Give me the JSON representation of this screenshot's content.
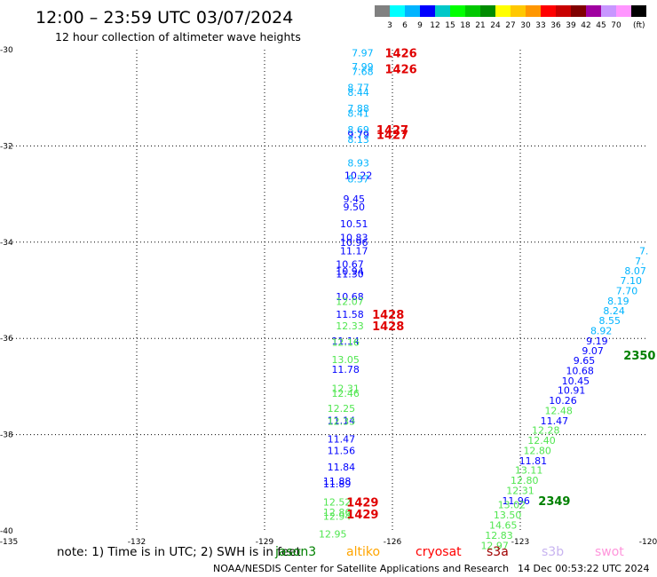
{
  "header": {
    "title": "12:00 – 23:59 UTC 03/07/2024",
    "subtitle": "12 hour collection of altimeter wave heights"
  },
  "legend": {
    "colors": [
      "#808080",
      "#00ffff",
      "#00b4ff",
      "#0000ff",
      "#00c8c8",
      "#00ff00",
      "#00c800",
      "#008c00",
      "#ffff00",
      "#ffc800",
      "#ff9600",
      "#ff0000",
      "#c80000",
      "#800000",
      "#a000a0",
      "#c896ff",
      "#ff96ff",
      "#000000"
    ],
    "labels": [
      "3",
      "6",
      "9",
      "12",
      "15",
      "18",
      "21",
      "24",
      "27",
      "30",
      "33",
      "36",
      "39",
      "42",
      "45",
      "70"
    ],
    "unit": "(ft)"
  },
  "footer": {
    "note": "note:  1) Time is in UTC; 2) SWH is in feet",
    "credit": "NOAA/NESDIS Center for Satellite Applications and Research",
    "timestamp": "14 Dec 00:53:22 UTC 2024",
    "satellites": [
      {
        "name": "jason3",
        "color": "#008000"
      },
      {
        "name": "altiko",
        "color": "#ffa500"
      },
      {
        "name": "cryosat",
        "color": "#ff0000"
      },
      {
        "name": "s3a",
        "color": "#a00000"
      },
      {
        "name": "s3b",
        "color": "#c8b4f0"
      },
      {
        "name": "swot",
        "color": "#ff96dc"
      }
    ]
  },
  "chart_data": {
    "type": "scatter",
    "title": "12:00 – 23:59 UTC 03/07/2024",
    "subtitle": "12 hour collection of altimeter wave heights",
    "xlim": [
      -135,
      -120
    ],
    "ylim": [
      -40,
      -30
    ],
    "x_ticks": [
      -135,
      -132,
      -129,
      -126,
      -123,
      -120
    ],
    "x_tick_labels": [
      "-135",
      "-132",
      "-129",
      "-126",
      "-123",
      "-120"
    ],
    "y_ticks": [
      -30,
      -32,
      -34,
      -36,
      -38,
      -40
    ],
    "y_tick_labels": [
      "-30",
      "-32",
      "-34",
      "-36",
      "-38",
      "-40"
    ],
    "grid": true,
    "points": [
      {
        "lon": -126.7,
        "lat": -30.06,
        "label": "7.97",
        "color": "#00b4ff"
      },
      {
        "lon": -126.7,
        "lat": -30.35,
        "label": "7.99",
        "color": "#00b4ff"
      },
      {
        "lon": -126.7,
        "lat": -30.45,
        "label": "7.68",
        "color": "#00b4ff"
      },
      {
        "lon": -126.8,
        "lat": -30.78,
        "label": "8.77",
        "color": "#00b4ff"
      },
      {
        "lon": -126.8,
        "lat": -30.89,
        "label": "8.44",
        "color": "#00b4ff"
      },
      {
        "lon": -126.8,
        "lat": -31.22,
        "label": "7.88",
        "color": "#00b4ff"
      },
      {
        "lon": -126.8,
        "lat": -31.32,
        "label": "8.41",
        "color": "#00b4ff"
      },
      {
        "lon": -126.8,
        "lat": -31.66,
        "label": "8.69",
        "color": "#00b4ff"
      },
      {
        "lon": -126.8,
        "lat": -31.76,
        "label": "9.79",
        "color": "#0000ff"
      },
      {
        "lon": -126.8,
        "lat": -31.86,
        "label": "8.13",
        "color": "#00b4ff"
      },
      {
        "lon": -126.8,
        "lat": -32.35,
        "label": "8.93",
        "color": "#00b4ff"
      },
      {
        "lon": -126.8,
        "lat": -32.61,
        "label": "10.22",
        "color": "#0000ff"
      },
      {
        "lon": -126.8,
        "lat": -32.68,
        "label": "8.37",
        "color": "#00b4ff"
      },
      {
        "lon": -126.9,
        "lat": -33.1,
        "label": "9.45",
        "color": "#0000ff"
      },
      {
        "lon": -126.9,
        "lat": -33.27,
        "label": "9.50",
        "color": "#0000ff"
      },
      {
        "lon": -126.9,
        "lat": -33.62,
        "label": "10.51",
        "color": "#0000ff"
      },
      {
        "lon": -126.9,
        "lat": -33.9,
        "label": "10.83",
        "color": "#0000ff"
      },
      {
        "lon": -126.9,
        "lat": -34.0,
        "label": "10.96",
        "color": "#0000ff"
      },
      {
        "lon": -126.9,
        "lat": -34.18,
        "label": "11.17",
        "color": "#0000ff"
      },
      {
        "lon": -127.0,
        "lat": -34.46,
        "label": "10.67",
        "color": "#0000ff"
      },
      {
        "lon": -127.0,
        "lat": -34.6,
        "label": "10.94",
        "color": "#0000ff"
      },
      {
        "lon": -127.0,
        "lat": -34.66,
        "label": "11.30",
        "color": "#0000ff"
      },
      {
        "lon": -127.0,
        "lat": -35.13,
        "label": "10.68",
        "color": "#0000ff"
      },
      {
        "lon": -127.0,
        "lat": -35.23,
        "label": "12.07",
        "color": "#50e650"
      },
      {
        "lon": -127.0,
        "lat": -35.5,
        "label": "11.58",
        "color": "#0000ff"
      },
      {
        "lon": -127.0,
        "lat": -35.74,
        "label": "12.33",
        "color": "#50e650"
      },
      {
        "lon": -127.1,
        "lat": -36.05,
        "label": "11.14",
        "color": "#0000ff"
      },
      {
        "lon": -127.1,
        "lat": -36.08,
        "label": "12.16",
        "color": "#50e650"
      },
      {
        "lon": -127.1,
        "lat": -36.44,
        "label": "13.05",
        "color": "#50e650"
      },
      {
        "lon": -127.1,
        "lat": -36.64,
        "label": "11.78",
        "color": "#0000ff"
      },
      {
        "lon": -127.1,
        "lat": -37.04,
        "label": "12.31",
        "color": "#50e650"
      },
      {
        "lon": -127.1,
        "lat": -37.14,
        "label": "12.46",
        "color": "#50e650"
      },
      {
        "lon": -127.2,
        "lat": -37.45,
        "label": "12.25",
        "color": "#50e650"
      },
      {
        "lon": -127.2,
        "lat": -37.7,
        "label": "11.14",
        "color": "#0000ff"
      },
      {
        "lon": -127.2,
        "lat": -37.72,
        "label": "12.33",
        "color": "#50e650"
      },
      {
        "lon": -127.2,
        "lat": -38.09,
        "label": "11.47",
        "color": "#0000ff"
      },
      {
        "lon": -127.2,
        "lat": -38.33,
        "label": "11.56",
        "color": "#0000ff"
      },
      {
        "lon": -127.2,
        "lat": -38.67,
        "label": "11.84",
        "color": "#0000ff"
      },
      {
        "lon": -127.3,
        "lat": -38.97,
        "label": "11.88",
        "color": "#0000ff"
      },
      {
        "lon": -127.3,
        "lat": -39.02,
        "label": "11.89",
        "color": "#0000ff"
      },
      {
        "lon": -127.3,
        "lat": -39.4,
        "label": "12.52",
        "color": "#50e650"
      },
      {
        "lon": -127.3,
        "lat": -39.61,
        "label": "12.86",
        "color": "#50e650"
      },
      {
        "lon": -127.3,
        "lat": -39.7,
        "label": "12.94",
        "color": "#50e650"
      },
      {
        "lon": -127.4,
        "lat": -40.06,
        "label": "12.95",
        "color": "#50e650"
      },
      {
        "lon": -120.1,
        "lat": -34.18,
        "label": "7.",
        "color": "#00b4ff"
      },
      {
        "lon": -120.2,
        "lat": -34.39,
        "label": "7.",
        "color": "#00b4ff"
      },
      {
        "lon": -120.3,
        "lat": -34.59,
        "label": "8.07",
        "color": "#00b4ff"
      },
      {
        "lon": -120.4,
        "lat": -34.8,
        "label": "7.10",
        "color": "#00b4ff"
      },
      {
        "lon": -120.5,
        "lat": -35.01,
        "label": "7.70",
        "color": "#00b4ff"
      },
      {
        "lon": -120.7,
        "lat": -35.22,
        "label": "8.19",
        "color": "#00b4ff"
      },
      {
        "lon": -120.8,
        "lat": -35.42,
        "label": "8.24",
        "color": "#00b4ff"
      },
      {
        "lon": -120.9,
        "lat": -35.63,
        "label": "8.55",
        "color": "#00b4ff"
      },
      {
        "lon": -121.1,
        "lat": -35.84,
        "label": "8.92",
        "color": "#00b4ff"
      },
      {
        "lon": -121.2,
        "lat": -36.05,
        "label": "9.19",
        "color": "#0000ff"
      },
      {
        "lon": -121.3,
        "lat": -36.25,
        "label": "9.07",
        "color": "#0000ff"
      },
      {
        "lon": -121.5,
        "lat": -36.46,
        "label": "9.65",
        "color": "#0000ff"
      },
      {
        "lon": -121.6,
        "lat": -36.67,
        "label": "10.68",
        "color": "#0000ff"
      },
      {
        "lon": -121.7,
        "lat": -36.88,
        "label": "10.45",
        "color": "#0000ff"
      },
      {
        "lon": -121.8,
        "lat": -37.08,
        "label": "10.91",
        "color": "#0000ff"
      },
      {
        "lon": -122.0,
        "lat": -37.29,
        "label": "10.26",
        "color": "#0000ff"
      },
      {
        "lon": -122.1,
        "lat": -37.5,
        "label": "12.48",
        "color": "#50e650"
      },
      {
        "lon": -122.2,
        "lat": -37.71,
        "label": "11.47",
        "color": "#0000ff"
      },
      {
        "lon": -122.4,
        "lat": -37.91,
        "label": "12.28",
        "color": "#50e650"
      },
      {
        "lon": -122.5,
        "lat": -38.12,
        "label": "12.40",
        "color": "#50e650"
      },
      {
        "lon": -122.6,
        "lat": -38.33,
        "label": "12.80",
        "color": "#50e650"
      },
      {
        "lon": -122.7,
        "lat": -38.54,
        "label": "11.81",
        "color": "#0000ff"
      },
      {
        "lon": -122.8,
        "lat": -38.74,
        "label": "13.11",
        "color": "#50e650"
      },
      {
        "lon": -122.9,
        "lat": -38.95,
        "label": "12.80",
        "color": "#50e650"
      },
      {
        "lon": -123.0,
        "lat": -39.16,
        "label": "12.31",
        "color": "#50e650"
      },
      {
        "lon": -123.1,
        "lat": -39.37,
        "label": "11.96",
        "color": "#0000ff"
      },
      {
        "lon": -123.2,
        "lat": -39.46,
        "label": "13.02",
        "color": "#50e650"
      },
      {
        "lon": -123.3,
        "lat": -39.67,
        "label": "13.50",
        "color": "#50e650"
      },
      {
        "lon": -123.4,
        "lat": -39.88,
        "label": "14.65",
        "color": "#50e650"
      },
      {
        "lon": -123.5,
        "lat": -40.09,
        "label": "12.83",
        "color": "#50e650"
      },
      {
        "lon": -123.6,
        "lat": -40.3,
        "label": "12.97",
        "color": "#50e650"
      }
    ],
    "pass_times": [
      {
        "lon": -125.8,
        "lat": -30.06,
        "label": "1426",
        "color": "#e00000"
      },
      {
        "lon": -125.8,
        "lat": -30.4,
        "label": "1426",
        "color": "#e00000"
      },
      {
        "lon": -126.0,
        "lat": -31.66,
        "label": "1427",
        "color": "#e00000"
      },
      {
        "lon": -126.0,
        "lat": -31.76,
        "label": "1427",
        "color": "#e00000"
      },
      {
        "lon": -126.1,
        "lat": -35.5,
        "label": "1428",
        "color": "#e00000"
      },
      {
        "lon": -126.1,
        "lat": -35.74,
        "label": "1428",
        "color": "#e00000"
      },
      {
        "lon": -126.7,
        "lat": -39.4,
        "label": "1429",
        "color": "#e00000"
      },
      {
        "lon": -126.7,
        "lat": -39.65,
        "label": "1429",
        "color": "#e00000"
      },
      {
        "lon": -120.2,
        "lat": -36.35,
        "label": "2350",
        "color": "#008000"
      },
      {
        "lon": -122.2,
        "lat": -39.37,
        "label": "2349",
        "color": "#008000"
      }
    ]
  }
}
